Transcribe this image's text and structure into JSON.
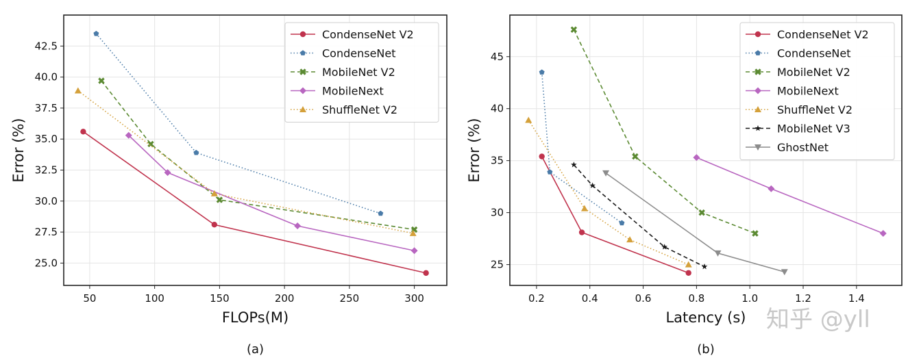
{
  "chart_data": [
    {
      "type": "line",
      "caption": "(a)",
      "xlabel": "FLOPs(M)",
      "ylabel": "Error (%)",
      "xlim": [
        30,
        325
      ],
      "ylim": [
        23.2,
        45.0
      ],
      "xticks": [
        50,
        100,
        150,
        200,
        250,
        300
      ],
      "xtick_labels": [
        "50",
        "100",
        "150",
        "200",
        "250",
        "300"
      ],
      "yticks": [
        25.0,
        27.5,
        30.0,
        32.5,
        35.0,
        37.5,
        40.0,
        42.5
      ],
      "ytick_labels": [
        "25.0",
        "27.5",
        "30.0",
        "32.5",
        "35.0",
        "37.5",
        "40.0",
        "42.5"
      ],
      "grid": true,
      "legend_position": "top-right",
      "series": [
        {
          "name": "CondenseNet V2",
          "color": "#c0334d",
          "dash": "solid",
          "marker": "circle",
          "x": [
            45,
            146,
            309
          ],
          "y": [
            35.6,
            28.1,
            24.2
          ]
        },
        {
          "name": "CondenseNet",
          "color": "#4a7ba8",
          "dash": "dotted",
          "marker": "pentagon",
          "x": [
            55,
            132,
            274
          ],
          "y": [
            43.5,
            33.9,
            29.0
          ]
        },
        {
          "name": "MobileNet V2",
          "color": "#5b8a32",
          "dash": "dashed",
          "marker": "x",
          "x": [
            59,
            97,
            150,
            300
          ],
          "y": [
            39.7,
            34.6,
            30.1,
            27.7
          ]
        },
        {
          "name": "MobileNext",
          "color": "#b866c0",
          "dash": "solid",
          "marker": "diamond",
          "x": [
            80,
            110,
            210,
            300
          ],
          "y": [
            35.3,
            32.3,
            28.0,
            26.0
          ]
        },
        {
          "name": "ShuffleNet V2",
          "color": "#d4a03a",
          "dash": "dotted",
          "marker": "triangle-up",
          "x": [
            41,
            146,
            299
          ],
          "y": [
            38.9,
            30.6,
            27.4
          ]
        }
      ]
    },
    {
      "type": "line",
      "caption": "(b)",
      "xlabel": "Latency (s)",
      "ylabel": "Error (%)",
      "xlim": [
        0.1,
        1.57
      ],
      "ylim": [
        23.0,
        49.0
      ],
      "xticks": [
        0.2,
        0.4,
        0.6,
        0.8,
        1.0,
        1.2,
        1.4
      ],
      "xtick_labels": [
        "0.2",
        "0.4",
        "0.6",
        "0.8",
        "1.0",
        "1.2",
        "1.4"
      ],
      "yticks": [
        25,
        30,
        35,
        40,
        45
      ],
      "ytick_labels": [
        "25",
        "30",
        "35",
        "40",
        "45"
      ],
      "grid": true,
      "legend_position": "top-right",
      "series": [
        {
          "name": "CondenseNet V2",
          "color": "#c0334d",
          "dash": "solid",
          "marker": "circle",
          "x": [
            0.22,
            0.37,
            0.77
          ],
          "y": [
            35.4,
            28.1,
            24.2
          ]
        },
        {
          "name": "CondenseNet",
          "color": "#4a7ba8",
          "dash": "dotted",
          "marker": "pentagon",
          "x": [
            0.22,
            0.25,
            0.52
          ],
          "y": [
            43.5,
            33.9,
            29.0
          ]
        },
        {
          "name": "MobileNet V2",
          "color": "#5b8a32",
          "dash": "dashed",
          "marker": "x",
          "x": [
            0.34,
            0.57,
            0.82,
            1.02
          ],
          "y": [
            47.6,
            35.4,
            30.0,
            28.0
          ]
        },
        {
          "name": "MobileNext",
          "color": "#b866c0",
          "dash": "solid",
          "marker": "diamond",
          "x": [
            0.8,
            1.08,
            1.5
          ],
          "y": [
            35.3,
            32.3,
            28.0
          ]
        },
        {
          "name": "ShuffleNet V2",
          "color": "#d4a03a",
          "dash": "dotted",
          "marker": "triangle-up",
          "x": [
            0.17,
            0.38,
            0.55,
            0.77
          ],
          "y": [
            38.9,
            30.4,
            27.4,
            25.0
          ]
        },
        {
          "name": "MobileNet V3",
          "color": "#1a1a1a",
          "dash": "dashed",
          "marker": "star",
          "x": [
            0.34,
            0.41,
            0.68,
            0.83
          ],
          "y": [
            34.6,
            32.6,
            26.7,
            24.8
          ]
        },
        {
          "name": "GhostNet",
          "color": "#8c8c8c",
          "dash": "solid",
          "marker": "triangle-down",
          "x": [
            0.46,
            0.88,
            1.13
          ],
          "y": [
            33.8,
            26.1,
            24.3
          ]
        }
      ]
    }
  ],
  "watermark": "知乎 @yll"
}
